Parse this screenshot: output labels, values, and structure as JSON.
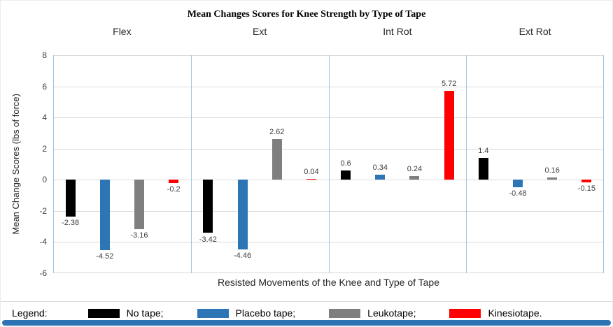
{
  "title": "Mean Changes Scores for Knee Strength by Type of Tape",
  "chart_data": {
    "type": "bar",
    "categories": [
      "Flex",
      "Ext",
      "Int Rot",
      "Ext Rot"
    ],
    "series": [
      {
        "name": "No tape",
        "color": "#000000",
        "values": [
          -2.38,
          -3.42,
          0.6,
          1.4
        ]
      },
      {
        "name": "Placebo tape",
        "color": "#2E75B6",
        "values": [
          -4.52,
          -4.46,
          0.34,
          -0.48
        ]
      },
      {
        "name": "Leukotape",
        "color": "#7F7F7F",
        "values": [
          -3.16,
          2.62,
          0.24,
          0.16
        ]
      },
      {
        "name": "Kinesiotape",
        "color": "#FF0000",
        "values": [
          -0.2,
          0.04,
          5.72,
          -0.15
        ]
      }
    ],
    "title": "Mean Changes Scores for Knee Strength by Type of Tape",
    "xlabel": "Resisted Movements of the Knee and Type of Tape",
    "ylabel": "Mean Change Scores (lbs of force)",
    "ylim": [
      -6,
      8
    ],
    "ytick_step": 2,
    "ytick_labels": [
      "8",
      "6",
      "4",
      "2",
      "0",
      "-2",
      "-4",
      "-6"
    ],
    "grid": true,
    "gridline_color": "#D9D9D9",
    "separator_color": "#9DC3E6",
    "legend_position": "bottom"
  },
  "legend": {
    "heading": "Legend:",
    "items": [
      {
        "label": "No tape;",
        "color": "#000000"
      },
      {
        "label": "Placebo tape;",
        "color": "#2E75B6"
      },
      {
        "label": "Leukotape;",
        "color": "#7F7F7F"
      },
      {
        "label": "Kinesiotape.",
        "color": "#FF0000"
      }
    ]
  }
}
